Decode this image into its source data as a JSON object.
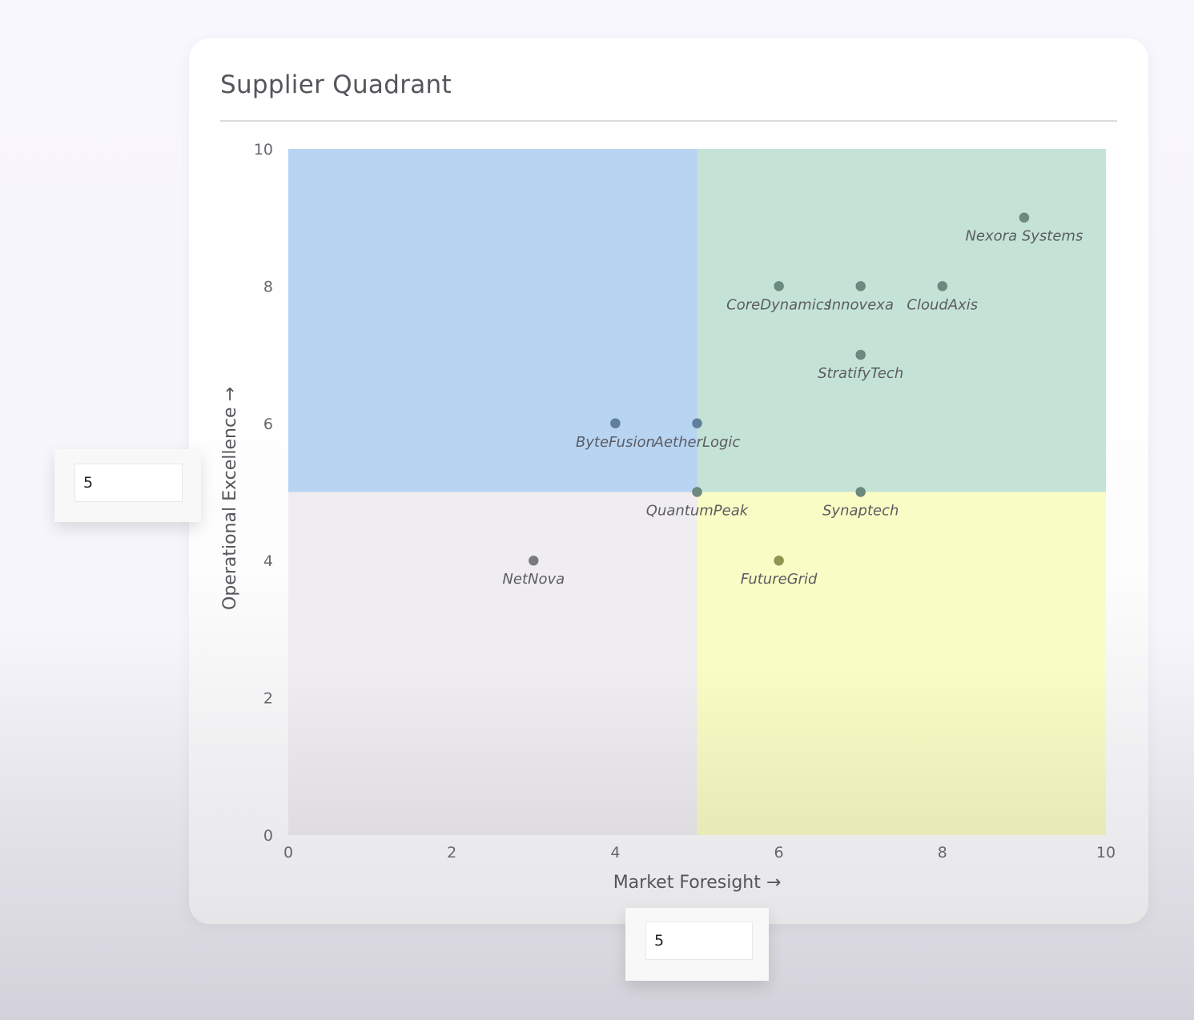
{
  "title": "Supplier Quadrant",
  "thresholds": {
    "y_input_value": "5",
    "x_input_value": "5"
  },
  "colors": {
    "quadrant_top_left": "#b8d4f3",
    "quadrant_top_right": "#c4e3d6",
    "quadrant_bottom_right": "#f9fcc4",
    "quadrant_bottom_left": "#efedf0",
    "point_fill": "#6b8a80",
    "point_fill_blue": "#5e7f9d",
    "point_fill_gray": "#7a7a82",
    "point_fill_olive": "#8e9650"
  },
  "chart_data": {
    "type": "scatter",
    "title": "Supplier Quadrant",
    "xlabel": "Market Foresight →",
    "ylabel": "Operational Excellence →",
    "xlim": [
      0,
      10
    ],
    "ylim": [
      0,
      10
    ],
    "x_ticks": [
      0,
      2,
      4,
      6,
      8,
      10
    ],
    "y_ticks": [
      0,
      2,
      4,
      6,
      8,
      10
    ],
    "x_threshold": 5,
    "y_threshold": 5,
    "grid": false,
    "legend": "none",
    "points": [
      {
        "label": "Nexora Systems",
        "x": 9,
        "y": 9
      },
      {
        "label": "CoreDynamics",
        "x": 6,
        "y": 8
      },
      {
        "label": "Innovexa",
        "x": 7,
        "y": 8
      },
      {
        "label": "CloudAxis",
        "x": 8,
        "y": 8
      },
      {
        "label": "StratifyTech",
        "x": 7,
        "y": 7
      },
      {
        "label": "ByteFusion",
        "x": 4,
        "y": 6
      },
      {
        "label": "AetherLogic",
        "x": 5,
        "y": 6
      },
      {
        "label": "QuantumPeak",
        "x": 5,
        "y": 5
      },
      {
        "label": "Synaptech",
        "x": 7,
        "y": 5
      },
      {
        "label": "NetNova",
        "x": 3,
        "y": 4
      },
      {
        "label": "FutureGrid",
        "x": 6,
        "y": 4
      }
    ]
  }
}
